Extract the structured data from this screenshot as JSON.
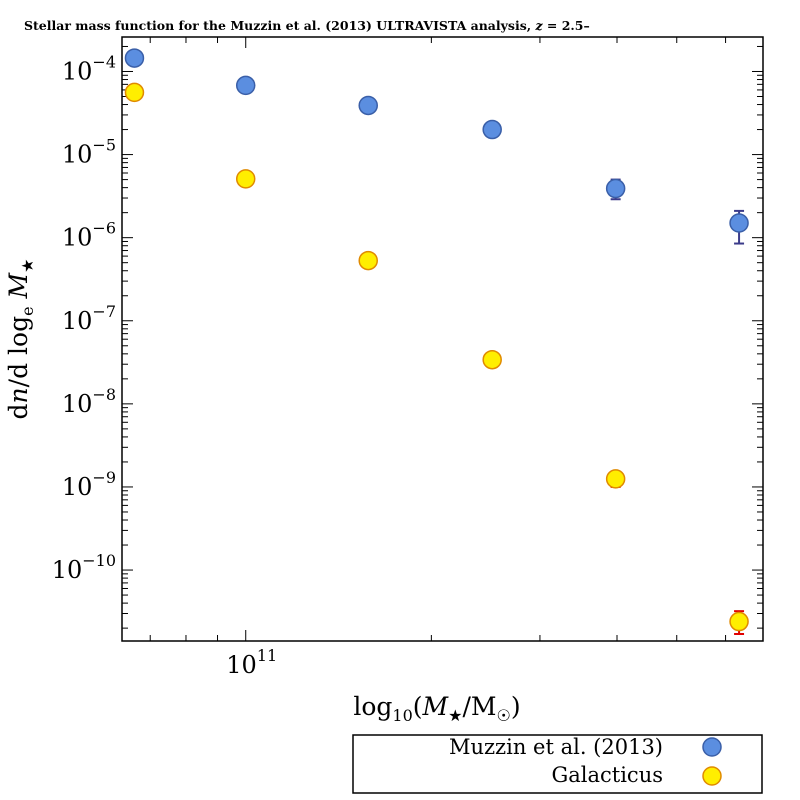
{
  "chart_data": {
    "type": "scatter",
    "title": "Stellar mass function for the Muzzin et al. (2013) ULTRAVISTA analysis, z = 2.5–",
    "xlabel": "log10(M★/M☉)",
    "ylabel": "dn/dloge M★",
    "xscale": "log",
    "yscale": "log",
    "xlim": [
      63000000000,
      690000000000
    ],
    "ylim": [
      1.4e-11,
      0.00026
    ],
    "x_ticks": [
      {
        "value": 100000000000,
        "label": "10",
        "exponent": "11"
      }
    ],
    "y_ticks": [
      {
        "value": 0.0001,
        "label": "10",
        "exponent": "−4"
      },
      {
        "value": 1e-05,
        "label": "10",
        "exponent": "−5"
      },
      {
        "value": 1e-06,
        "label": "10",
        "exponent": "−6"
      },
      {
        "value": 1e-07,
        "label": "10",
        "exponent": "−7"
      },
      {
        "value": 1e-08,
        "label": "10",
        "exponent": "−8"
      },
      {
        "value": 1e-09,
        "label": "10",
        "exponent": "−9"
      },
      {
        "value": 1e-10,
        "label": "10",
        "exponent": "−10"
      }
    ],
    "legend_position": "bottom-right outside",
    "series": [
      {
        "name": "Muzzin et al. (2013)",
        "color": "#5b8ee0",
        "edge_color": "#3a5fa8",
        "error_color": "#3b3b8a",
        "x": [
          66000000000,
          100000000000,
          158000000000,
          251000000000,
          398000000000,
          631000000000
        ],
        "y": [
          0.000145,
          6.8e-05,
          3.9e-05,
          2e-05,
          3.9e-06,
          1.5e-06
        ],
        "y_err_low": [
          0.00012,
          6.5e-05,
          3.7e-05,
          1.9e-05,
          2.9e-06,
          8.5e-07
        ],
        "y_err_high": [
          0.00017,
          7.1e-05,
          4.1e-05,
          2.1e-05,
          5e-06,
          2.1e-06
        ]
      },
      {
        "name": "Galacticus",
        "color": "#ffee00",
        "edge_color": "#e08a00",
        "error_color": "#e00000",
        "x": [
          66000000000,
          100000000000,
          158000000000,
          251000000000,
          398000000000,
          631000000000
        ],
        "y": [
          5.6e-05,
          5.1e-06,
          5.3e-07,
          3.4e-08,
          1.25e-09,
          2.4e-11
        ],
        "y_err_low": [
          5.4e-05,
          4.9e-06,
          5.1e-07,
          3.2e-08,
          1e-09,
          1.7e-11
        ],
        "y_err_high": [
          5.8e-05,
          5.3e-06,
          5.5e-07,
          3.6e-08,
          1.5e-09,
          3.2e-11
        ]
      }
    ]
  }
}
